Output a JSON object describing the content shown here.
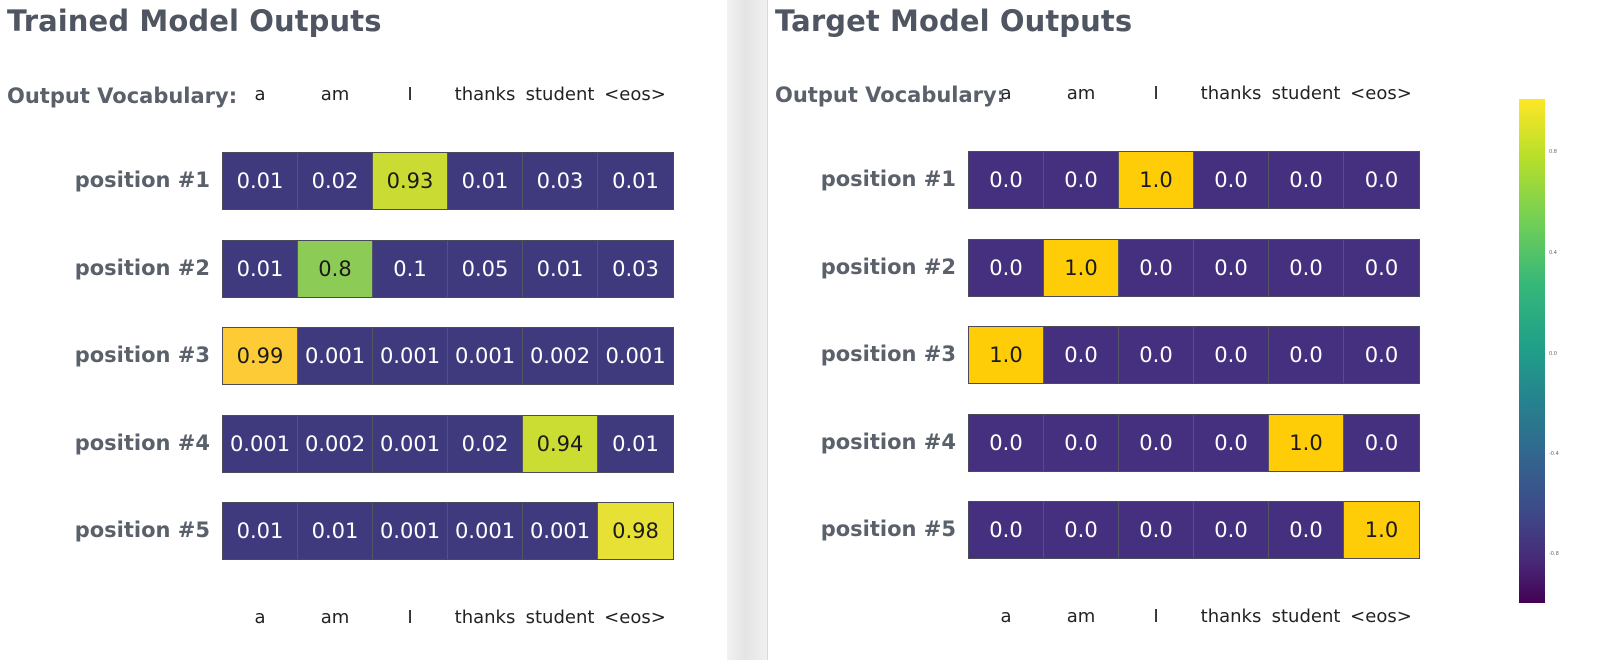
{
  "colors": {
    "low": "#3f3a7e",
    "low_target": "#45307f",
    "high_target": "#fecd08",
    "title": "#4f5661",
    "colorbar_stops": [
      "#440154",
      "#482878",
      "#3e4989",
      "#31688e",
      "#26828e",
      "#1f9e89",
      "#35b779",
      "#6ece58",
      "#b5de2b",
      "#fde725"
    ]
  },
  "trained": {
    "title": "Trained Model Outputs",
    "vocab_label": "Output Vocabulary:",
    "vocab": [
      "a",
      "am",
      "I",
      "thanks",
      "student",
      "<eos>"
    ],
    "rows": [
      {
        "label": "position #1",
        "values": [
          "0.01",
          "0.02",
          "0.93",
          "0.01",
          "0.03",
          "0.01"
        ]
      },
      {
        "label": "position #2",
        "values": [
          "0.01",
          "0.8",
          "0.1",
          "0.05",
          "0.01",
          "0.03"
        ]
      },
      {
        "label": "position #3",
        "values": [
          "0.99",
          "0.001",
          "0.001",
          "0.001",
          "0.002",
          "0.001"
        ]
      },
      {
        "label": "position #4",
        "values": [
          "0.001",
          "0.002",
          "0.001",
          "0.02",
          "0.94",
          "0.01"
        ]
      },
      {
        "label": "position #5",
        "values": [
          "0.01",
          "0.01",
          "0.001",
          "0.001",
          "0.001",
          "0.98"
        ]
      }
    ],
    "cell_colors": [
      [
        "#3f3a7e",
        "#3f3a7e",
        "#cadb34",
        "#3f3a7e",
        "#3f3a7e",
        "#3f3a7e"
      ],
      [
        "#3f3a7e",
        "#8dcb57",
        "#3f3a7e",
        "#3f3a7e",
        "#3f3a7e",
        "#3f3a7e"
      ],
      [
        "#fccb36",
        "#3f3a7e",
        "#3f3a7e",
        "#3f3a7e",
        "#3f3a7e",
        "#3f3a7e"
      ],
      [
        "#3f3a7e",
        "#3f3a7e",
        "#3f3a7e",
        "#3f3a7e",
        "#cbdc33",
        "#3f3a7e"
      ],
      [
        "#3f3a7e",
        "#3f3a7e",
        "#3f3a7e",
        "#3f3a7e",
        "#3f3a7e",
        "#e8e135"
      ]
    ]
  },
  "target": {
    "title": "Target Model Outputs",
    "vocab_label": "Output Vocabulary:",
    "vocab": [
      "a",
      "am",
      "I",
      "thanks",
      "student",
      "<eos>"
    ],
    "rows": [
      {
        "label": "position #1",
        "values": [
          "0.0",
          "0.0",
          "1.0",
          "0.0",
          "0.0",
          "0.0"
        ]
      },
      {
        "label": "position #2",
        "values": [
          "0.0",
          "1.0",
          "0.0",
          "0.0",
          "0.0",
          "0.0"
        ]
      },
      {
        "label": "position #3",
        "values": [
          "1.0",
          "0.0",
          "0.0",
          "0.0",
          "0.0",
          "0.0"
        ]
      },
      {
        "label": "position #4",
        "values": [
          "0.0",
          "0.0",
          "0.0",
          "0.0",
          "1.0",
          "0.0"
        ]
      },
      {
        "label": "position #5",
        "values": [
          "0.0",
          "0.0",
          "0.0",
          "0.0",
          "0.0",
          "1.0"
        ]
      }
    ],
    "cell_colors": [
      [
        "#45307f",
        "#45307f",
        "#fecd08",
        "#45307f",
        "#45307f",
        "#45307f"
      ],
      [
        "#45307f",
        "#fecd08",
        "#45307f",
        "#45307f",
        "#45307f",
        "#45307f"
      ],
      [
        "#fecd08",
        "#45307f",
        "#45307f",
        "#45307f",
        "#45307f",
        "#45307f"
      ],
      [
        "#45307f",
        "#45307f",
        "#45307f",
        "#45307f",
        "#fecd08",
        "#45307f"
      ],
      [
        "#45307f",
        "#45307f",
        "#45307f",
        "#45307f",
        "#45307f",
        "#fecd08"
      ]
    ]
  },
  "colorbar": {
    "ticks": [
      "0.8",
      "0.4",
      "0.0",
      "-0.4",
      "-0.8"
    ]
  }
}
